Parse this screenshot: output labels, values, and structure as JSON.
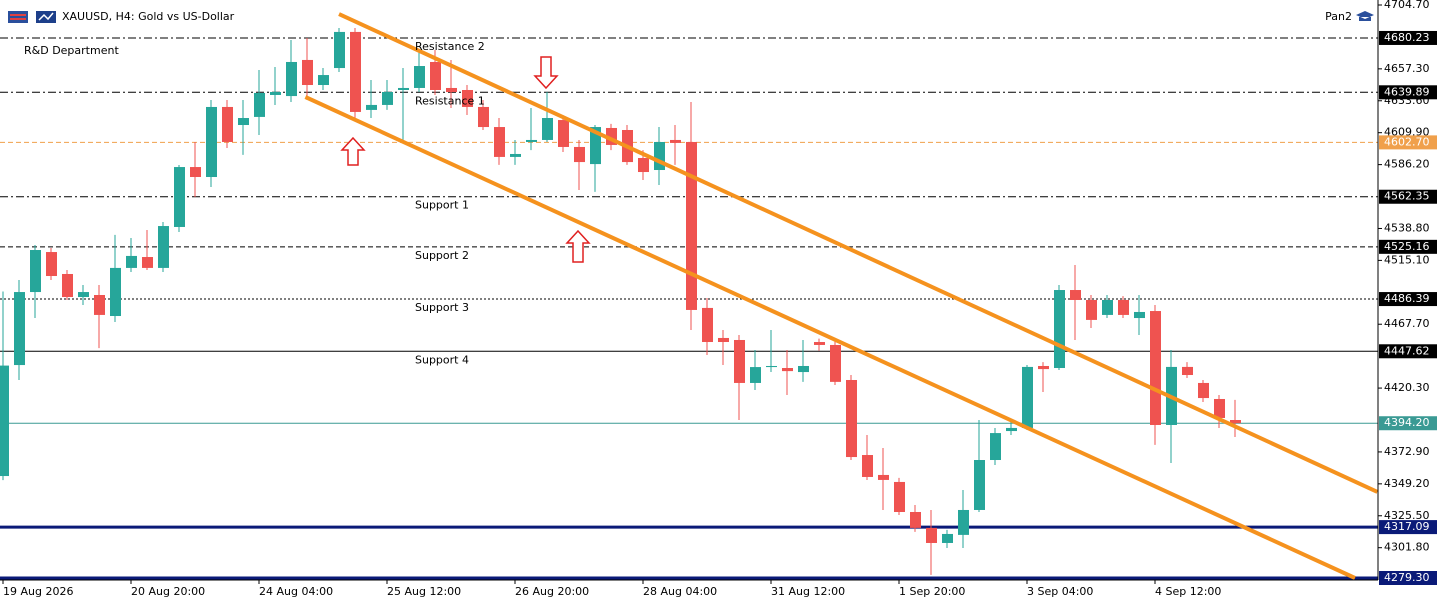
{
  "chart_data": {
    "type": "candlestick",
    "title": "XAUUSD, H4:  Gold vs US-Dollar",
    "subtitle": "R&D Department",
    "corner_label": "Pan2",
    "up_color": "#26a69a",
    "down_color": "#ef5350",
    "x": [
      "19 Aug 2026",
      null,
      null,
      null,
      null,
      null,
      null,
      null,
      "20 Aug 20:00",
      null,
      null,
      null,
      null,
      null,
      null,
      null,
      "24 Aug 04:00",
      null,
      null,
      null,
      null,
      null,
      null,
      null,
      "25 Aug 12:00",
      null,
      null,
      null,
      null,
      null,
      null,
      null,
      "26 Aug 20:00",
      null,
      null,
      null,
      null,
      null,
      null,
      null,
      "28 Aug 04:00",
      null,
      null,
      null,
      null,
      null,
      null,
      null,
      "31 Aug 12:00",
      null,
      null,
      null,
      null,
      null,
      null,
      null,
      "1 Sep 20:00",
      null,
      null,
      null,
      null,
      null,
      null,
      null,
      "3 Sep 04:00",
      null,
      null,
      null,
      null,
      null,
      null,
      null,
      "4 Sep 12:00",
      null,
      null,
      null,
      null,
      null
    ],
    "open": [
      4355,
      4437.4,
      4491.6,
      4521.3,
      4505,
      4487.9,
      4489.4,
      4473.8,
      4509.5,
      4517.6,
      4509.5,
      4539.9,
      4584.4,
      4577,
      4629,
      4615.6,
      4621.6,
      4637.9,
      4637.1,
      4663.9,
      4645.3,
      4657.9,
      4684.7,
      4626.8,
      4630.5,
      4641.6,
      4643.1,
      4662.4,
      4643.1,
      4641.6,
      4629,
      4614.1,
      4591.9,
      4603,
      4604.5,
      4619.3,
      4599.3,
      4586.6,
      4613.4,
      4611.9,
      4591.1,
      4582.2,
      4604.5,
      4603,
      4479.8,
      4457.5,
      4456,
      4424.1,
      4435.9,
      4435.2,
      4432.2,
      4454.5,
      4452.3,
      4426.3,
      4370.6,
      4355.8,
      4350.6,
      4328.3,
      4316.5,
      4305.3,
      4311.3,
      4329.8,
      4366.9,
      4388.4,
      4390.7,
      4436.7,
      4435.2,
      4493.1,
      4485.7,
      4474.6,
      4485.7,
      4472.3,
      4477.5,
      4392.9,
      4436,
      4424.1,
      4412.2,
      4396.6
    ],
    "high": [
      4492,
      4500.5,
      4526.5,
      4524.3,
      4508,
      4496.8,
      4496.8,
      4534,
      4531.7,
      4537.7,
      4543.6,
      4585.9,
      4603,
      4634.2,
      4634.2,
      4634.2,
      4656.4,
      4658.7,
      4678.7,
      4680.2,
      4657.9,
      4687.6,
      4687.6,
      4649,
      4649,
      4657.9,
      4671.3,
      4671.3,
      4663.9,
      4645.3,
      4634.2,
      4620.8,
      4604.5,
      4628.2,
      4640.1,
      4623,
      4604.5,
      4615.6,
      4616.4,
      4615.6,
      4597,
      4614.1,
      4615.6,
      4632.7,
      4487.2,
      4463.4,
      4459.7,
      4448.6,
      4463.4,
      4448.6,
      4456,
      4457,
      4456,
      4430,
      4385.5,
      4375.8,
      4353.6,
      4333.5,
      4329.8,
      4315,
      4344.6,
      4396.6,
      4390.7,
      4396.6,
      4437.4,
      4439.6,
      4496.8,
      4511.7,
      4489.4,
      4489.4,
      4488.6,
      4489.4,
      4482,
      4448.6,
      4439.6,
      4426.3,
      4415.2,
      4411.5
    ],
    "low": [
      4352,
      4426.3,
      4472.3,
      4500.5,
      4485.7,
      4482,
      4450,
      4469.4,
      4506.5,
      4508,
      4506.5,
      4536.2,
      4562.2,
      4569.6,
      4598.5,
      4593.4,
      4608.2,
      4630.5,
      4632.7,
      4634.2,
      4641.6,
      4655,
      4620.8,
      4620.8,
      4626.8,
      4604.5,
      4640.1,
      4637.9,
      4628.2,
      4623,
      4611.9,
      4586,
      4586,
      4597,
      4603,
      4595.6,
      4567.4,
      4566,
      4597,
      4586,
      4574.8,
      4571.1,
      4586,
      4463.4,
      4444.9,
      4437.4,
      4396.6,
      4418.9,
      4432.2,
      4415.2,
      4424.9,
      4448,
      4422.6,
      4366.9,
      4352.1,
      4329.8,
      4326.1,
      4313.5,
      4281.6,
      4301.6,
      4301.6,
      4328.3,
      4363.2,
      4385.5,
      4389.2,
      4417.4,
      4433.7,
      4456,
      4464.9,
      4472.3,
      4472.3,
      4459.7,
      4378.1,
      4364.7,
      4427.8,
      4410,
      4390.7,
      4384
    ],
    "close": [
      4437,
      4491.6,
      4522.8,
      4503.5,
      4487.9,
      4491.6,
      4474.6,
      4509.5,
      4518.4,
      4509.5,
      4540.6,
      4584.4,
      4577,
      4629,
      4603,
      4620.8,
      4639.4,
      4640.1,
      4662.4,
      4645.3,
      4652.7,
      4684.7,
      4625.3,
      4630.5,
      4640.1,
      4643.1,
      4659.4,
      4641.6,
      4640.1,
      4629,
      4614.1,
      4591.9,
      4594.1,
      4604.5,
      4620.8,
      4599.3,
      4588.1,
      4614.1,
      4600.8,
      4588.1,
      4580.7,
      4603,
      4602.3,
      4478.3,
      4454.5,
      4454.5,
      4424.1,
      4435.9,
      4436.7,
      4432.9,
      4436.7,
      4452.3,
      4424.9,
      4369.1,
      4354.3,
      4352.1,
      4328.3,
      4316.5,
      4305.3,
      4312,
      4329.8,
      4366.9,
      4386.9,
      4390.7,
      4436,
      4434.4,
      4493.1,
      4485.7,
      4470.9,
      4485.7,
      4474.6,
      4476.8,
      4392.9,
      4436,
      4430,
      4412.9,
      4398.1,
      4394.2
    ],
    "ylim": [
      {
        "value": 4279.3,
        "label": "4279.30"
      },
      {
        "value": 4704.7,
        "label": "4704.70"
      }
    ],
    "yticks": [
      {
        "value": 4704.7,
        "label": "4704.70"
      },
      {
        "value": 4657.3,
        "label": "4657.30"
      },
      {
        "value": 4633.6,
        "label": "4633.60"
      },
      {
        "value": 4609.9,
        "label": "4609.90"
      },
      {
        "value": 4586.2,
        "label": "4586.20"
      },
      {
        "value": 4538.8,
        "label": "4538.80"
      },
      {
        "value": 4515.1,
        "label": "4515.10"
      },
      {
        "value": 4467.7,
        "label": "4467.70"
      },
      {
        "value": 4420.3,
        "label": "4420.30"
      },
      {
        "value": 4372.9,
        "label": "4372.90"
      },
      {
        "value": 4349.2,
        "label": "4349.20"
      },
      {
        "value": 4325.5,
        "label": "4325.50"
      },
      {
        "value": 4301.8,
        "label": "4301.80"
      }
    ],
    "levels": [
      {
        "name": "Resistance 2",
        "price": 4680.23,
        "style": "dash-dot",
        "color": "#000000"
      },
      {
        "name": "Resistance 1",
        "price": 4639.89,
        "style": "dash-dot",
        "color": "#000000"
      },
      {
        "price": {
          "value": 4602.7,
          "label": "4602.70"
        },
        "style": "dashed",
        "color": "#f0a04b"
      },
      {
        "name": "Support 1",
        "price": 4562.35,
        "style": "dash-dot",
        "color": "#000000"
      },
      {
        "name": "Support 2",
        "price": 4525.16,
        "style": "dashed",
        "color": "#000000"
      },
      {
        "name": "Support 3",
        "price": 4486.39,
        "style": "dotted",
        "color": "#000000"
      },
      {
        "name": "Support 4",
        "price": 4447.62,
        "style": "solid",
        "color": "#000000"
      },
      {
        "price": {
          "value": 4394.2,
          "label": "4394.20"
        },
        "style": "solid",
        "color": "#3a9a94"
      },
      {
        "price": 4317.09,
        "style": "thick",
        "color": "#0a1a78"
      },
      {
        "price": {
          "value": 4279.3,
          "label": "4279.30"
        },
        "style": "thick",
        "color": "#0a1a78"
      }
    ],
    "trendlines": [
      {
        "x": [
          21,
          85.9
        ],
        "y": [
          4698,
          4343.2
        ],
        "color": "#f5921e"
      },
      {
        "x": [
          18.9,
          84.5
        ],
        "y": [
          4636.4,
          4279.3
        ],
        "color": "#f5921e"
      }
    ]
  }
}
